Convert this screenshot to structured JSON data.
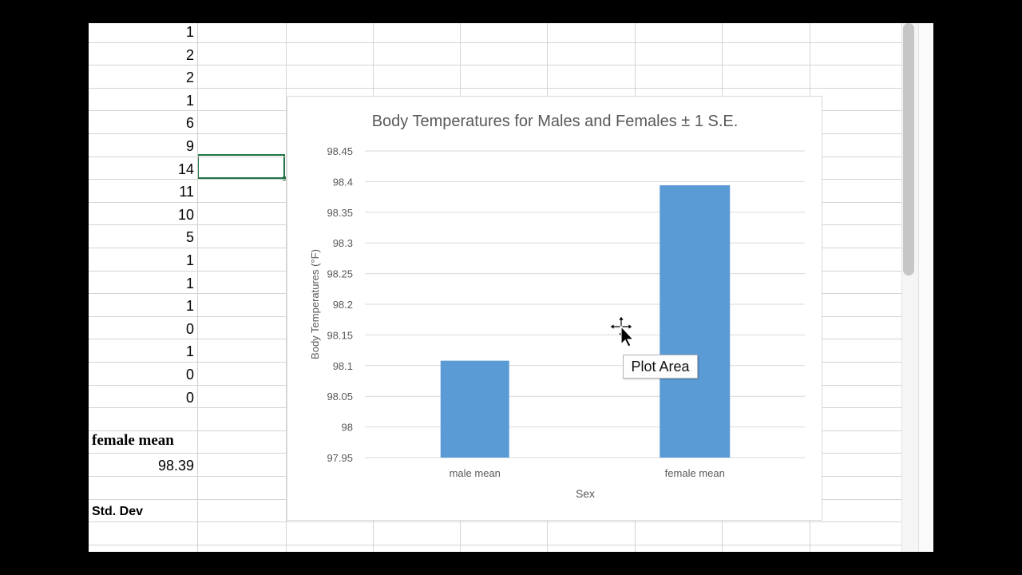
{
  "sheet": {
    "column_a_values": [
      "1",
      "2",
      "2",
      "1",
      "6",
      "9",
      "14",
      "11",
      "10",
      "5",
      "1",
      "1",
      "1",
      "0",
      "1",
      "0",
      "0"
    ],
    "female_mean_label": "female mean",
    "female_mean_value": "98.39",
    "std_dev_label": "Std. Dev"
  },
  "tooltip": {
    "text": "Plot Area"
  },
  "icons": {
    "cursor": "move-cursor-icon"
  },
  "colors": {
    "bar": "#5b9bd5",
    "selection": "#217346"
  },
  "chart_data": {
    "type": "bar",
    "title": "Body Temperatures for Males and Females ± 1 S.E.",
    "xlabel": "Sex",
    "ylabel": "Body Temperatures (°F)",
    "categories": [
      "male mean",
      "female mean"
    ],
    "values": [
      98.108,
      98.394
    ],
    "ylim": [
      97.95,
      98.45
    ],
    "yticks": [
      "97.95",
      "98",
      "98.05",
      "98.1",
      "98.15",
      "98.2",
      "98.25",
      "98.3",
      "98.35",
      "98.4",
      "98.45"
    ],
    "grid": true,
    "legend": "none"
  }
}
